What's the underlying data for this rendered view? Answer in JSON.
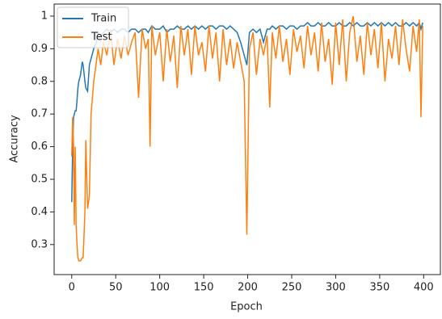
{
  "chart_data": {
    "type": "line",
    "xlabel": "Epoch",
    "ylabel": "Accuracy",
    "x": [
      0,
      1,
      2,
      3,
      4,
      5,
      6,
      7,
      8,
      10,
      12,
      13,
      15,
      16,
      18,
      20,
      22,
      25,
      28,
      30,
      33,
      36,
      40,
      44,
      48,
      52,
      56,
      60,
      64,
      68,
      72,
      76,
      80,
      84,
      87,
      89,
      91,
      95,
      100,
      104,
      108,
      112,
      116,
      120,
      124,
      128,
      132,
      136,
      140,
      144,
      148,
      152,
      156,
      160,
      164,
      168,
      172,
      176,
      180,
      184,
      188,
      192,
      196,
      199,
      202,
      206,
      210,
      214,
      218,
      222,
      225,
      228,
      232,
      236,
      240,
      244,
      248,
      252,
      256,
      260,
      264,
      268,
      272,
      276,
      280,
      284,
      288,
      292,
      296,
      300,
      304,
      308,
      312,
      316,
      320,
      324,
      328,
      332,
      336,
      340,
      344,
      348,
      352,
      356,
      360,
      364,
      368,
      372,
      376,
      380,
      384,
      388,
      392,
      395,
      397,
      399
    ],
    "series": [
      {
        "name": "Train",
        "color": "#1f77b4",
        "values": [
          0.43,
          0.6,
          0.69,
          0.7,
          0.71,
          0.71,
          0.74,
          0.78,
          0.8,
          0.82,
          0.86,
          0.85,
          0.8,
          0.78,
          0.77,
          0.85,
          0.87,
          0.9,
          0.92,
          0.95,
          0.94,
          0.95,
          0.96,
          0.95,
          0.96,
          0.95,
          0.96,
          0.96,
          0.95,
          0.96,
          0.96,
          0.95,
          0.96,
          0.96,
          0.95,
          0.96,
          0.97,
          0.96,
          0.96,
          0.97,
          0.95,
          0.96,
          0.96,
          0.97,
          0.96,
          0.96,
          0.97,
          0.96,
          0.97,
          0.96,
          0.97,
          0.96,
          0.97,
          0.97,
          0.96,
          0.97,
          0.97,
          0.96,
          0.97,
          0.96,
          0.95,
          0.92,
          0.88,
          0.85,
          0.95,
          0.96,
          0.95,
          0.96,
          0.92,
          0.96,
          0.96,
          0.97,
          0.96,
          0.97,
          0.97,
          0.96,
          0.97,
          0.97,
          0.96,
          0.97,
          0.97,
          0.98,
          0.97,
          0.97,
          0.98,
          0.97,
          0.97,
          0.98,
          0.97,
          0.97,
          0.98,
          0.97,
          0.97,
          0.98,
          0.97,
          0.98,
          0.97,
          0.97,
          0.98,
          0.97,
          0.98,
          0.97,
          0.98,
          0.97,
          0.98,
          0.97,
          0.98,
          0.97,
          0.97,
          0.98,
          0.97,
          0.98,
          0.97,
          0.98,
          0.96,
          0.98
        ]
      },
      {
        "name": "Test",
        "color": "#ff7f0e",
        "values": [
          0.57,
          0.69,
          0.6,
          0.36,
          0.6,
          0.36,
          0.3,
          0.26,
          0.25,
          0.25,
          0.26,
          0.26,
          0.4,
          0.62,
          0.41,
          0.45,
          0.7,
          0.8,
          0.86,
          0.9,
          0.85,
          0.92,
          0.88,
          0.96,
          0.85,
          0.93,
          0.87,
          0.94,
          0.88,
          0.92,
          0.95,
          0.75,
          0.96,
          0.9,
          0.93,
          0.6,
          0.97,
          0.88,
          0.95,
          0.8,
          0.96,
          0.86,
          0.94,
          0.78,
          0.97,
          0.88,
          0.96,
          0.82,
          0.97,
          0.88,
          0.92,
          0.83,
          0.97,
          0.87,
          0.95,
          0.8,
          0.96,
          0.85,
          0.93,
          0.84,
          0.92,
          0.86,
          0.8,
          0.33,
          0.9,
          0.95,
          0.82,
          0.93,
          0.88,
          0.94,
          0.72,
          0.95,
          0.87,
          0.97,
          0.86,
          0.93,
          0.82,
          0.96,
          0.89,
          0.94,
          0.84,
          0.97,
          0.88,
          0.95,
          0.83,
          0.98,
          0.86,
          0.93,
          0.79,
          0.98,
          0.85,
          0.99,
          0.8,
          0.95,
          1.0,
          0.86,
          0.94,
          0.82,
          0.98,
          0.88,
          0.96,
          0.84,
          0.98,
          0.8,
          0.93,
          0.87,
          0.97,
          0.85,
          0.99,
          0.9,
          0.83,
          0.97,
          0.89,
          0.99,
          0.69,
          0.97
        ]
      }
    ],
    "xlim": [
      -20,
      419
    ],
    "xticks": [
      0,
      50,
      100,
      150,
      200,
      250,
      300,
      350,
      400
    ],
    "ylim": [
      0.208,
      1.037
    ],
    "yticks": [
      0.3,
      0.4,
      0.5,
      0.6,
      0.7,
      0.8,
      0.9,
      1.0
    ],
    "legend": "upper left"
  }
}
